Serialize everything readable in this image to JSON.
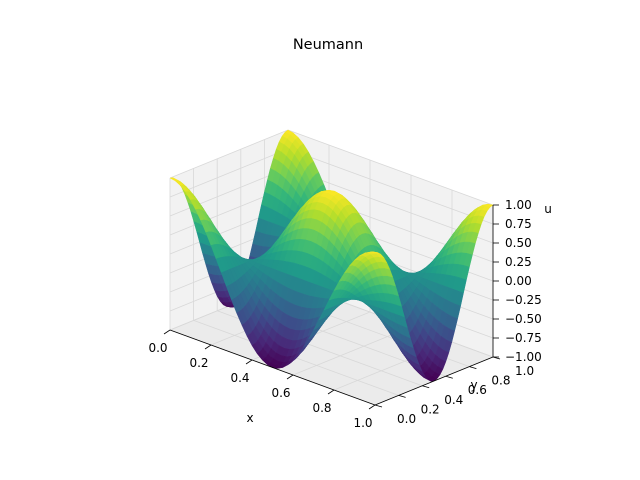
{
  "chart_data": {
    "type": "surface3d",
    "title": "Neumann",
    "xlabel": "x",
    "ylabel": "y",
    "zlabel": "u",
    "xlim": [
      0,
      1
    ],
    "ylim": [
      0,
      1
    ],
    "zlim": [
      -1,
      1
    ],
    "x_ticks": [
      "0.0",
      "0.2",
      "0.4",
      "0.6",
      "0.8",
      "1.0"
    ],
    "y_ticks": [
      "0.0",
      "0.2",
      "0.4",
      "0.6",
      "0.8",
      "1.0"
    ],
    "z_ticks": [
      "−1.00",
      "−0.75",
      "−0.50",
      "−0.25",
      "0.00",
      "0.25",
      "0.50",
      "0.75",
      "1.00"
    ],
    "function": "u(x,y) = cos(2πx)·cos(2πy)",
    "grid_points": 41,
    "colormap": "viridis",
    "grid": true
  },
  "colors": {
    "pane_fill": "#f2f2f2",
    "grid_line": "#d8d8d8",
    "viridis": [
      "#440154",
      "#482878",
      "#3e4989",
      "#31688e",
      "#26828e",
      "#1f9e89",
      "#35b779",
      "#6ece58",
      "#b5de2b",
      "#fde725"
    ]
  }
}
